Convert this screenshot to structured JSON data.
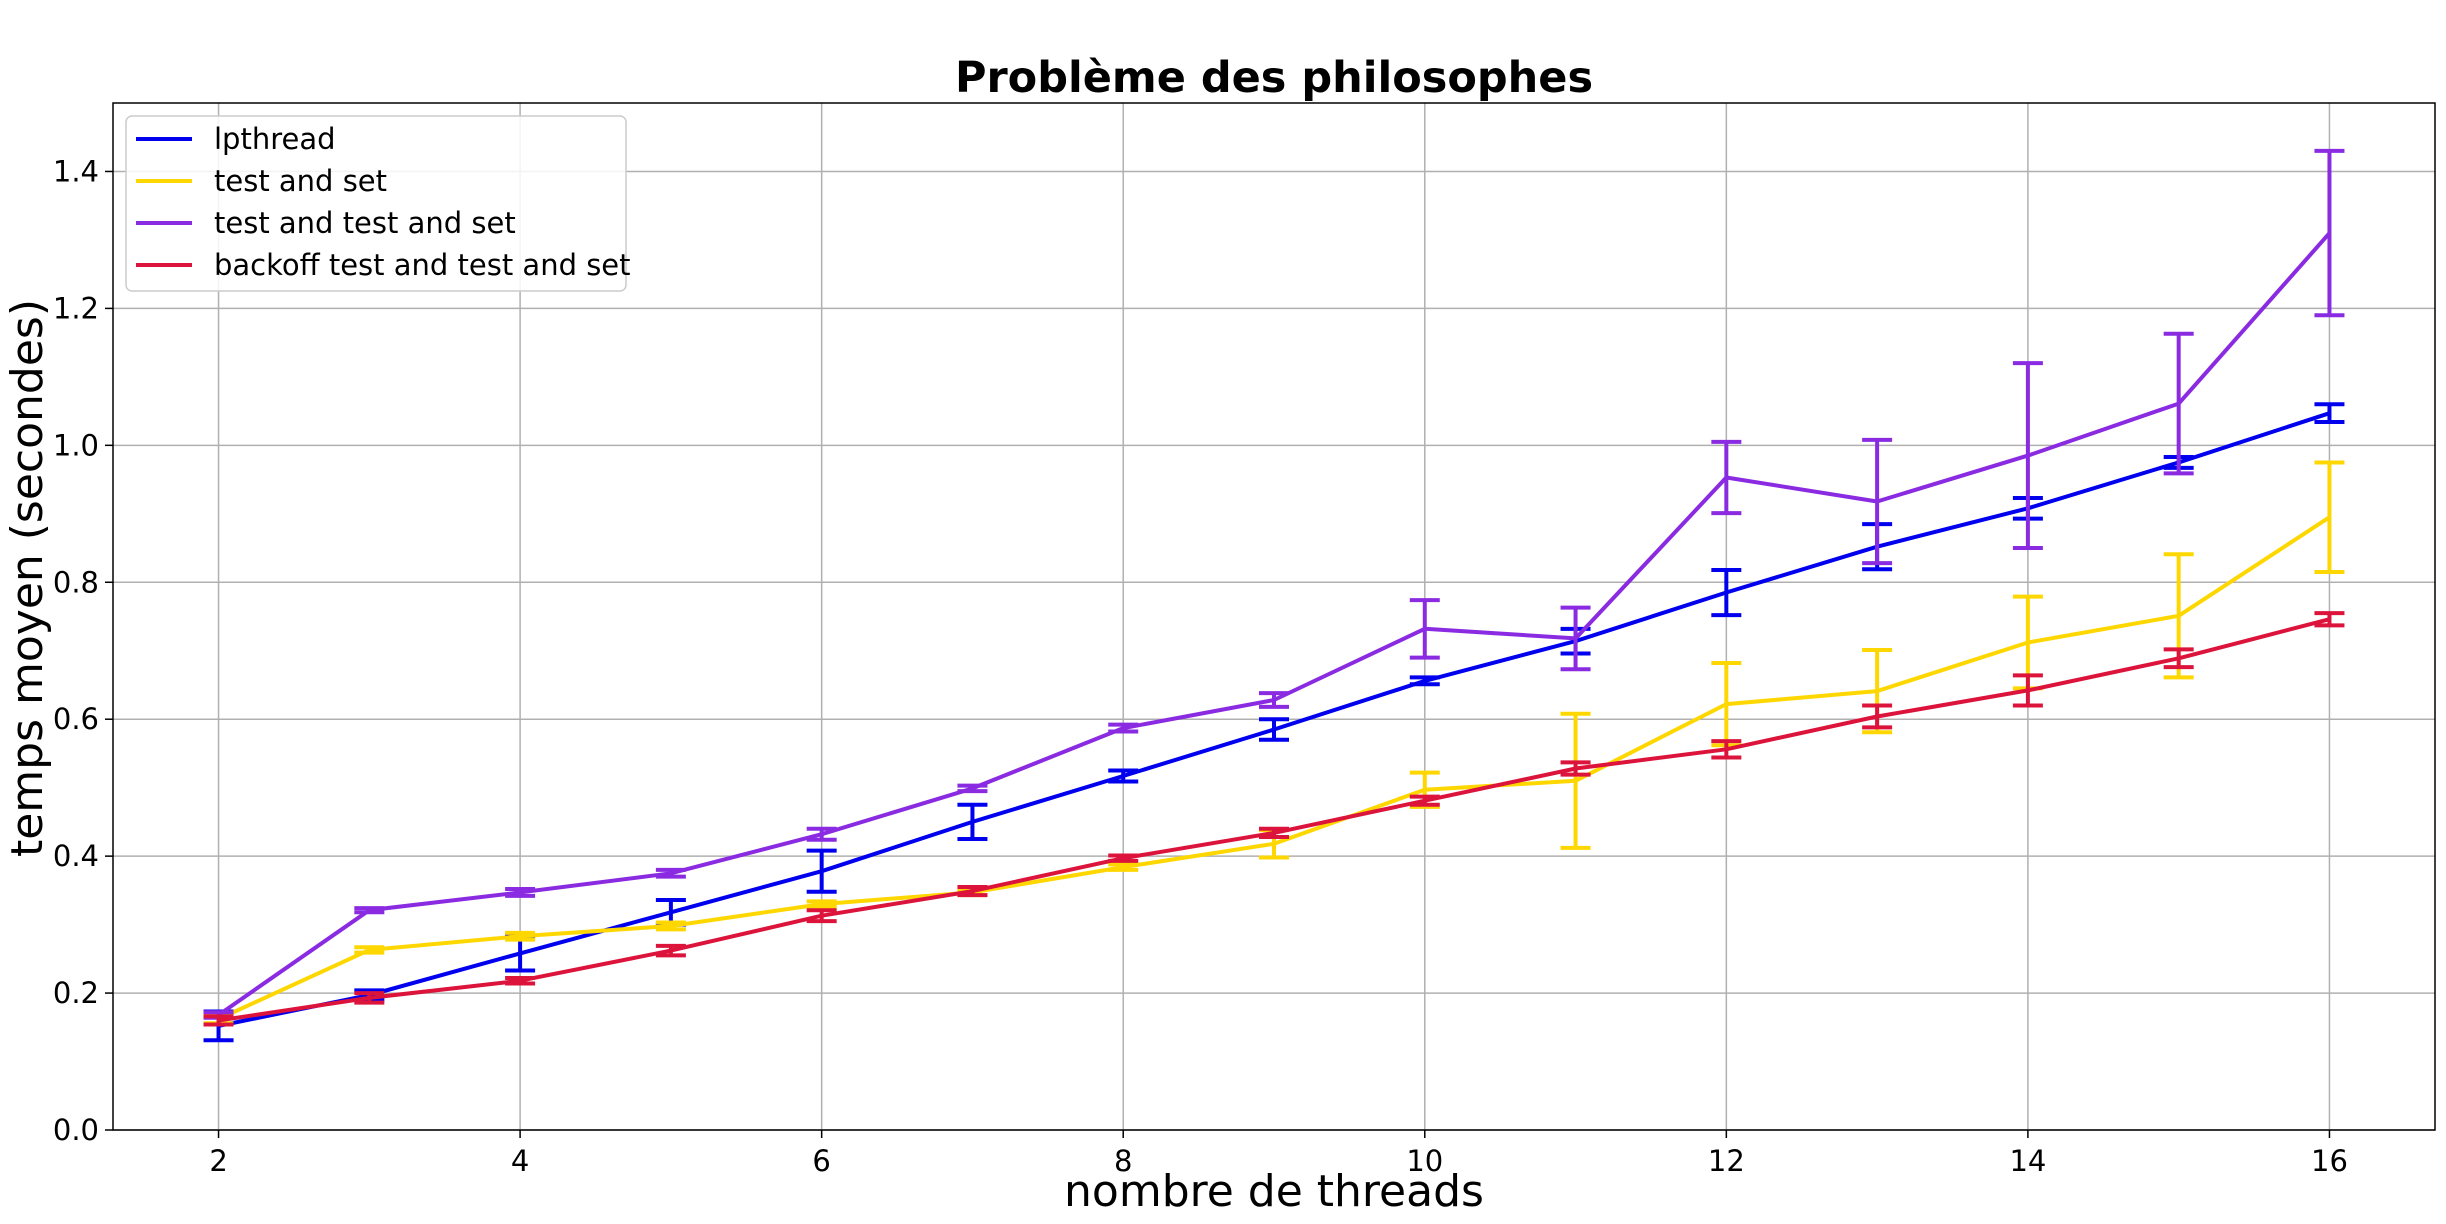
{
  "chart_data": {
    "type": "line",
    "title": "Problème des philosophes",
    "xlabel": "nombre de threads",
    "ylabel": "temps moyen (secondes)",
    "xlim": [
      1.3,
      16.7
    ],
    "ylim": [
      0.0,
      1.5
    ],
    "xticks": [
      2,
      4,
      6,
      8,
      10,
      12,
      14,
      16
    ],
    "xtick_labels": [
      "2",
      "4",
      "6",
      "8",
      "10",
      "12",
      "14",
      "16"
    ],
    "yticks": [
      0.0,
      0.2,
      0.4,
      0.6,
      0.8,
      1.0,
      1.2,
      1.4
    ],
    "ytick_labels": [
      "0.0",
      "0.2",
      "0.4",
      "0.6",
      "0.8",
      "1.0",
      "1.2",
      "1.4"
    ],
    "grid": true,
    "legend_position": "top-left",
    "x": [
      2,
      3,
      4,
      5,
      6,
      7,
      8,
      9,
      10,
      11,
      12,
      13,
      14,
      15,
      16
    ],
    "series": [
      {
        "name": "lpthread",
        "color": "#0000ee",
        "values": [
          0.152,
          0.197,
          0.258,
          0.318,
          0.378,
          0.45,
          0.517,
          0.585,
          0.656,
          0.714,
          0.785,
          0.852,
          0.908,
          0.975,
          1.047
        ],
        "errors": [
          0.021,
          0.007,
          0.025,
          0.018,
          0.03,
          0.025,
          0.008,
          0.015,
          0.005,
          0.018,
          0.033,
          0.033,
          0.015,
          0.008,
          0.013
        ]
      },
      {
        "name": "test and set",
        "color": "#ffd700",
        "values": [
          0.162,
          0.263,
          0.283,
          0.298,
          0.33,
          0.347,
          0.384,
          0.418,
          0.497,
          0.51,
          0.622,
          0.641,
          0.712,
          0.751,
          0.895
        ],
        "errors": [
          0.006,
          0.004,
          0.005,
          0.005,
          0.004,
          0.004,
          0.004,
          0.02,
          0.025,
          0.098,
          0.06,
          0.06,
          0.067,
          0.09,
          0.08
        ]
      },
      {
        "name": "test and test and set",
        "color": "#8a2be2",
        "values": [
          0.168,
          0.321,
          0.347,
          0.375,
          0.432,
          0.499,
          0.587,
          0.628,
          0.732,
          0.718,
          0.953,
          0.918,
          0.985,
          1.061,
          1.31
        ],
        "errors": [
          0.004,
          0.003,
          0.005,
          0.005,
          0.008,
          0.004,
          0.005,
          0.01,
          0.042,
          0.045,
          0.052,
          0.09,
          0.135,
          0.102,
          0.12
        ]
      },
      {
        "name": "backoff test and test and set",
        "color": "#dc143c",
        "values": [
          0.16,
          0.193,
          0.218,
          0.262,
          0.313,
          0.349,
          0.397,
          0.434,
          0.481,
          0.528,
          0.556,
          0.604,
          0.642,
          0.689,
          0.746
        ],
        "errors": [
          0.006,
          0.007,
          0.004,
          0.007,
          0.008,
          0.006,
          0.004,
          0.006,
          0.006,
          0.009,
          0.012,
          0.016,
          0.022,
          0.013,
          0.009
        ]
      }
    ]
  }
}
